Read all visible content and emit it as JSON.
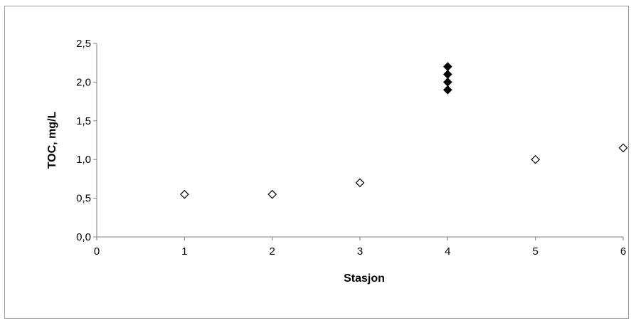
{
  "chart_data": {
    "type": "scatter",
    "xlabel": "Stasjon",
    "ylabel": "TOC, mg/L",
    "xlim": [
      0,
      6
    ],
    "ylim": [
      0,
      2.5
    ],
    "x_ticks": [
      "0",
      "1",
      "2",
      "3",
      "4",
      "5",
      "6"
    ],
    "y_ticks": [
      "0,0",
      "0,5",
      "1,0",
      "1,5",
      "2,0",
      "2,5"
    ],
    "grid": false,
    "series": [
      {
        "marker": "diamond-open",
        "color": "#000000",
        "points": [
          {
            "x": 1,
            "y": 0.55
          },
          {
            "x": 2,
            "y": 0.55
          },
          {
            "x": 3,
            "y": 0.7
          },
          {
            "x": 5,
            "y": 1.0
          },
          {
            "x": 6,
            "y": 1.15
          }
        ]
      },
      {
        "marker": "diamond-filled",
        "color": "#000000",
        "points": [
          {
            "x": 4,
            "y": 1.9
          },
          {
            "x": 4,
            "y": 2.0
          },
          {
            "x": 4,
            "y": 2.1
          },
          {
            "x": 4,
            "y": 2.2
          }
        ]
      }
    ]
  }
}
